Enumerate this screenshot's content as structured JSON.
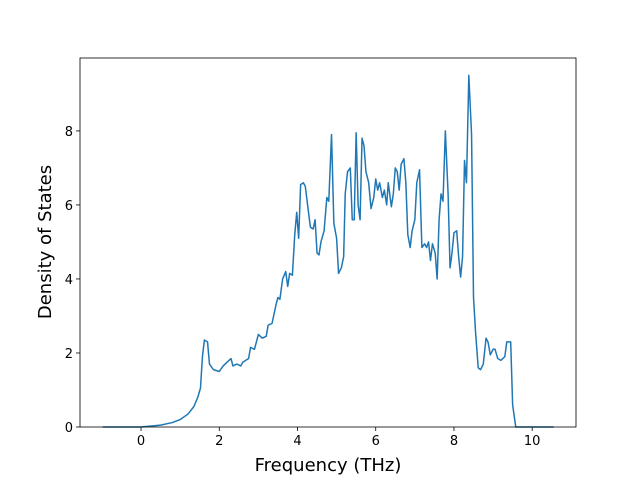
{
  "chart_data": {
    "type": "line",
    "xlabel": "Frequency (THz)",
    "ylabel": "Density of States",
    "xlim": [
      -1.56,
      11.12
    ],
    "ylim": [
      0,
      9.97
    ],
    "xticks": [
      0,
      2,
      4,
      6,
      8,
      10
    ],
    "yticks": [
      0,
      2,
      4,
      6,
      8
    ],
    "grid": false,
    "series": [
      {
        "name": "DOS",
        "color": "#1f77b4",
        "x": [
          -0.98,
          0,
          0.5,
          0.8,
          1.0,
          1.2,
          1.35,
          1.45,
          1.52,
          1.57,
          1.62,
          1.7,
          1.75,
          1.85,
          2.0,
          2.1,
          2.2,
          2.3,
          2.35,
          2.45,
          2.55,
          2.6,
          2.75,
          2.8,
          2.9,
          3.0,
          3.1,
          3.2,
          3.25,
          3.35,
          3.45,
          3.5,
          3.55,
          3.62,
          3.7,
          3.75,
          3.8,
          3.87,
          3.93,
          3.98,
          4.03,
          4.08,
          4.15,
          4.2,
          4.27,
          4.33,
          4.4,
          4.45,
          4.5,
          4.55,
          4.6,
          4.68,
          4.75,
          4.8,
          4.87,
          4.93,
          5.0,
          5.05,
          5.12,
          5.18,
          5.22,
          5.28,
          5.35,
          5.4,
          5.45,
          5.5,
          5.55,
          5.6,
          5.65,
          5.7,
          5.75,
          5.82,
          5.88,
          5.95,
          6.0,
          6.05,
          6.1,
          6.17,
          6.22,
          6.28,
          6.32,
          6.4,
          6.45,
          6.5,
          6.55,
          6.6,
          6.65,
          6.72,
          6.77,
          6.82,
          6.88,
          6.93,
          7.0,
          7.05,
          7.12,
          7.18,
          7.25,
          7.3,
          7.35,
          7.4,
          7.45,
          7.52,
          7.57,
          7.62,
          7.67,
          7.72,
          7.78,
          7.85,
          7.9,
          7.95,
          8.0,
          8.07,
          8.12,
          8.17,
          8.22,
          8.27,
          8.32,
          8.38,
          8.45,
          8.5,
          8.55,
          8.62,
          8.68,
          8.75,
          8.82,
          8.87,
          8.93,
          9.0,
          9.05,
          9.12,
          9.2,
          9.3,
          9.35,
          9.45,
          9.5,
          9.58,
          10.55
        ],
        "values": [
          0,
          0,
          0.05,
          0.12,
          0.2,
          0.35,
          0.55,
          0.8,
          1.05,
          1.9,
          2.35,
          2.3,
          1.7,
          1.55,
          1.5,
          1.65,
          1.75,
          1.85,
          1.65,
          1.7,
          1.65,
          1.75,
          1.85,
          2.15,
          2.1,
          2.5,
          2.4,
          2.45,
          2.75,
          2.8,
          3.3,
          3.5,
          3.45,
          4.0,
          4.2,
          3.8,
          4.15,
          4.1,
          5.2,
          5.8,
          5.1,
          6.55,
          6.6,
          6.5,
          5.9,
          5.4,
          5.35,
          5.6,
          4.7,
          4.65,
          5.0,
          5.3,
          6.2,
          6.1,
          7.9,
          5.5,
          5.1,
          4.15,
          4.3,
          4.6,
          6.3,
          6.9,
          7.0,
          5.6,
          5.6,
          7.95,
          6.0,
          5.6,
          7.8,
          7.6,
          6.9,
          6.6,
          5.9,
          6.2,
          6.7,
          6.4,
          6.6,
          6.2,
          6.4,
          6.0,
          6.6,
          5.95,
          6.3,
          7.0,
          6.9,
          6.4,
          7.1,
          7.25,
          6.6,
          5.2,
          4.85,
          5.3,
          5.6,
          6.6,
          6.95,
          4.85,
          4.95,
          4.85,
          5.0,
          4.5,
          4.95,
          4.7,
          4.0,
          5.6,
          6.3,
          6.1,
          8.0,
          6.3,
          4.3,
          4.7,
          5.25,
          5.3,
          4.6,
          4.05,
          4.6,
          7.2,
          6.6,
          9.5,
          7.9,
          3.5,
          2.6,
          1.6,
          1.55,
          1.7,
          2.4,
          2.3,
          1.95,
          2.1,
          2.1,
          1.85,
          1.8,
          1.9,
          2.3,
          2.3,
          0.6,
          0,
          0
        ]
      }
    ]
  }
}
